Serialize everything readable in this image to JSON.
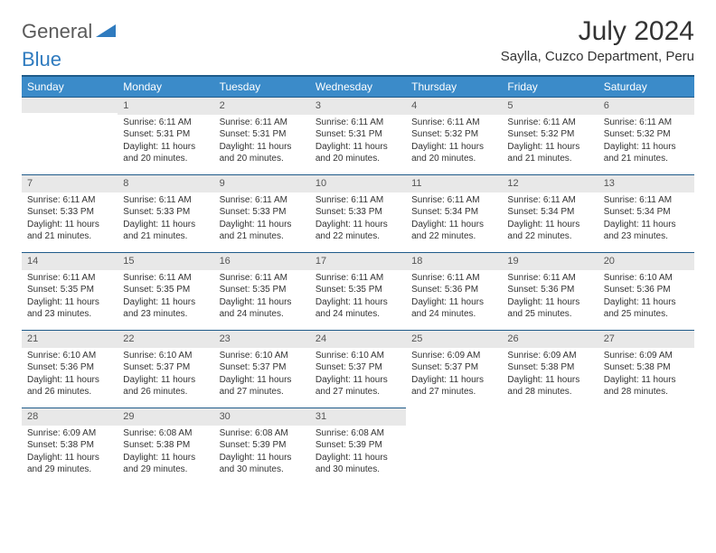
{
  "logo": {
    "general": "General",
    "blue": "Blue"
  },
  "title": "July 2024",
  "location": "Saylla, Cuzco Department, Peru",
  "colors": {
    "header_bg": "#3b8bc9",
    "header_border": "#1f5b8a",
    "daynum_bg": "#e8e8e8",
    "text": "#333333",
    "logo_gray": "#5a5a5a",
    "logo_blue": "#2f7bbf"
  },
  "weekdays": [
    "Sunday",
    "Monday",
    "Tuesday",
    "Wednesday",
    "Thursday",
    "Friday",
    "Saturday"
  ],
  "weeks": [
    [
      null,
      {
        "n": "1",
        "sr": "Sunrise: 6:11 AM",
        "ss": "Sunset: 5:31 PM",
        "d1": "Daylight: 11 hours",
        "d2": "and 20 minutes."
      },
      {
        "n": "2",
        "sr": "Sunrise: 6:11 AM",
        "ss": "Sunset: 5:31 PM",
        "d1": "Daylight: 11 hours",
        "d2": "and 20 minutes."
      },
      {
        "n": "3",
        "sr": "Sunrise: 6:11 AM",
        "ss": "Sunset: 5:31 PM",
        "d1": "Daylight: 11 hours",
        "d2": "and 20 minutes."
      },
      {
        "n": "4",
        "sr": "Sunrise: 6:11 AM",
        "ss": "Sunset: 5:32 PM",
        "d1": "Daylight: 11 hours",
        "d2": "and 20 minutes."
      },
      {
        "n": "5",
        "sr": "Sunrise: 6:11 AM",
        "ss": "Sunset: 5:32 PM",
        "d1": "Daylight: 11 hours",
        "d2": "and 21 minutes."
      },
      {
        "n": "6",
        "sr": "Sunrise: 6:11 AM",
        "ss": "Sunset: 5:32 PM",
        "d1": "Daylight: 11 hours",
        "d2": "and 21 minutes."
      }
    ],
    [
      {
        "n": "7",
        "sr": "Sunrise: 6:11 AM",
        "ss": "Sunset: 5:33 PM",
        "d1": "Daylight: 11 hours",
        "d2": "and 21 minutes."
      },
      {
        "n": "8",
        "sr": "Sunrise: 6:11 AM",
        "ss": "Sunset: 5:33 PM",
        "d1": "Daylight: 11 hours",
        "d2": "and 21 minutes."
      },
      {
        "n": "9",
        "sr": "Sunrise: 6:11 AM",
        "ss": "Sunset: 5:33 PM",
        "d1": "Daylight: 11 hours",
        "d2": "and 21 minutes."
      },
      {
        "n": "10",
        "sr": "Sunrise: 6:11 AM",
        "ss": "Sunset: 5:33 PM",
        "d1": "Daylight: 11 hours",
        "d2": "and 22 minutes."
      },
      {
        "n": "11",
        "sr": "Sunrise: 6:11 AM",
        "ss": "Sunset: 5:34 PM",
        "d1": "Daylight: 11 hours",
        "d2": "and 22 minutes."
      },
      {
        "n": "12",
        "sr": "Sunrise: 6:11 AM",
        "ss": "Sunset: 5:34 PM",
        "d1": "Daylight: 11 hours",
        "d2": "and 22 minutes."
      },
      {
        "n": "13",
        "sr": "Sunrise: 6:11 AM",
        "ss": "Sunset: 5:34 PM",
        "d1": "Daylight: 11 hours",
        "d2": "and 23 minutes."
      }
    ],
    [
      {
        "n": "14",
        "sr": "Sunrise: 6:11 AM",
        "ss": "Sunset: 5:35 PM",
        "d1": "Daylight: 11 hours",
        "d2": "and 23 minutes."
      },
      {
        "n": "15",
        "sr": "Sunrise: 6:11 AM",
        "ss": "Sunset: 5:35 PM",
        "d1": "Daylight: 11 hours",
        "d2": "and 23 minutes."
      },
      {
        "n": "16",
        "sr": "Sunrise: 6:11 AM",
        "ss": "Sunset: 5:35 PM",
        "d1": "Daylight: 11 hours",
        "d2": "and 24 minutes."
      },
      {
        "n": "17",
        "sr": "Sunrise: 6:11 AM",
        "ss": "Sunset: 5:35 PM",
        "d1": "Daylight: 11 hours",
        "d2": "and 24 minutes."
      },
      {
        "n": "18",
        "sr": "Sunrise: 6:11 AM",
        "ss": "Sunset: 5:36 PM",
        "d1": "Daylight: 11 hours",
        "d2": "and 24 minutes."
      },
      {
        "n": "19",
        "sr": "Sunrise: 6:11 AM",
        "ss": "Sunset: 5:36 PM",
        "d1": "Daylight: 11 hours",
        "d2": "and 25 minutes."
      },
      {
        "n": "20",
        "sr": "Sunrise: 6:10 AM",
        "ss": "Sunset: 5:36 PM",
        "d1": "Daylight: 11 hours",
        "d2": "and 25 minutes."
      }
    ],
    [
      {
        "n": "21",
        "sr": "Sunrise: 6:10 AM",
        "ss": "Sunset: 5:36 PM",
        "d1": "Daylight: 11 hours",
        "d2": "and 26 minutes."
      },
      {
        "n": "22",
        "sr": "Sunrise: 6:10 AM",
        "ss": "Sunset: 5:37 PM",
        "d1": "Daylight: 11 hours",
        "d2": "and 26 minutes."
      },
      {
        "n": "23",
        "sr": "Sunrise: 6:10 AM",
        "ss": "Sunset: 5:37 PM",
        "d1": "Daylight: 11 hours",
        "d2": "and 27 minutes."
      },
      {
        "n": "24",
        "sr": "Sunrise: 6:10 AM",
        "ss": "Sunset: 5:37 PM",
        "d1": "Daylight: 11 hours",
        "d2": "and 27 minutes."
      },
      {
        "n": "25",
        "sr": "Sunrise: 6:09 AM",
        "ss": "Sunset: 5:37 PM",
        "d1": "Daylight: 11 hours",
        "d2": "and 27 minutes."
      },
      {
        "n": "26",
        "sr": "Sunrise: 6:09 AM",
        "ss": "Sunset: 5:38 PM",
        "d1": "Daylight: 11 hours",
        "d2": "and 28 minutes."
      },
      {
        "n": "27",
        "sr": "Sunrise: 6:09 AM",
        "ss": "Sunset: 5:38 PM",
        "d1": "Daylight: 11 hours",
        "d2": "and 28 minutes."
      }
    ],
    [
      {
        "n": "28",
        "sr": "Sunrise: 6:09 AM",
        "ss": "Sunset: 5:38 PM",
        "d1": "Daylight: 11 hours",
        "d2": "and 29 minutes."
      },
      {
        "n": "29",
        "sr": "Sunrise: 6:08 AM",
        "ss": "Sunset: 5:38 PM",
        "d1": "Daylight: 11 hours",
        "d2": "and 29 minutes."
      },
      {
        "n": "30",
        "sr": "Sunrise: 6:08 AM",
        "ss": "Sunset: 5:39 PM",
        "d1": "Daylight: 11 hours",
        "d2": "and 30 minutes."
      },
      {
        "n": "31",
        "sr": "Sunrise: 6:08 AM",
        "ss": "Sunset: 5:39 PM",
        "d1": "Daylight: 11 hours",
        "d2": "and 30 minutes."
      },
      null,
      null,
      null
    ]
  ]
}
